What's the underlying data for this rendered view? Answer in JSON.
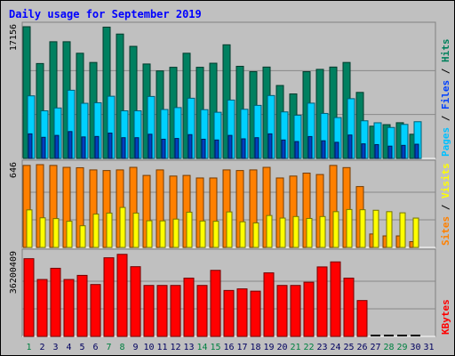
{
  "chart_data": {
    "title": "Daily usage for September 2019",
    "type": "bar",
    "categories": [
      "1",
      "2",
      "3",
      "4",
      "5",
      "6",
      "7",
      "8",
      "9",
      "10",
      "11",
      "12",
      "13",
      "14",
      "15",
      "16",
      "17",
      "18",
      "19",
      "20",
      "21",
      "22",
      "23",
      "24",
      "25",
      "26",
      "27",
      "28",
      "29",
      "30",
      "31"
    ],
    "weekend_days": [
      "1",
      "7",
      "8",
      "14",
      "15",
      "21",
      "22",
      "28",
      "29"
    ],
    "panels": [
      {
        "id": "hits",
        "axis_max_label": "17156",
        "ymax": 17156,
        "legend": [
          {
            "name": "Hits",
            "color": "#00805c"
          },
          {
            "name": "Files",
            "color": "#0040ff"
          },
          {
            "name": "Pages",
            "color": "#00c0ff"
          }
        ],
        "series": [
          {
            "name": "Hits",
            "color": "#008060",
            "values": [
              17156,
              12360,
              15200,
              15200,
              13700,
              12500,
              17100,
              16200,
              14600,
              12300,
              11400,
              11870,
              13700,
              11870,
              12400,
              14800,
              12000,
              11300,
              11900,
              9500,
              8400,
              11300,
              11600,
              11900,
              12500,
              8600,
              4200,
              4400,
              4650,
              3150,
              null
            ]
          },
          {
            "name": "Pages",
            "color": "#00d0ff",
            "values": [
              8150,
              6200,
              6570,
              8880,
              7180,
              7250,
              8100,
              6200,
              6200,
              8070,
              6370,
              6620,
              7840,
              6350,
              6010,
              7600,
              6400,
              6910,
              8190,
              6060,
              5620,
              7200,
              5860,
              5320,
              7780,
              4900,
              4640,
              4030,
              4430,
              4780,
              null
            ]
          },
          {
            "name": "Files",
            "color": "#0040c0",
            "values": [
              3200,
              2750,
              3000,
              3500,
              2800,
              2860,
              3300,
              2700,
              2700,
              3150,
              2500,
              2600,
              3100,
              2500,
              2400,
              3000,
              2550,
              2700,
              3200,
              2400,
              2200,
              2850,
              2300,
              2100,
              3050,
              1900,
              1800,
              1600,
              1700,
              1850,
              null
            ]
          }
        ]
      },
      {
        "id": "sites",
        "axis_max_label": "646",
        "ymax": 646,
        "legend": [
          {
            "name": "Visits",
            "color": "#ffff00"
          },
          {
            "name": "Sites",
            "color": "#ff8000"
          }
        ],
        "series": [
          {
            "name": "Visits",
            "color": "#ffff00",
            "values": [
              293,
              231,
              225,
              204,
              169,
              260,
              268,
              312,
              268,
              208,
              207,
              221,
              275,
              206,
              204,
              277,
              200,
              191,
              249,
              229,
              241,
              226,
              241,
              279,
              296,
              294,
              290,
              279,
              270,
              229,
              null
            ]
          },
          {
            "name": "Sites",
            "color": "#ff8000",
            "values": [
              640,
              646,
              640,
              625,
              622,
              605,
              600,
              605,
              625,
              562,
              605,
              557,
              562,
              542,
              542,
              605,
              600,
              605,
              625,
              542,
              557,
              580,
              569,
              640,
              623,
              475,
              105,
              90,
              90,
              45,
              null
            ]
          }
        ]
      },
      {
        "id": "kbytes",
        "axis_max_label": "36200409",
        "ymax": 36200409,
        "legend": [
          {
            "name": "KBytes",
            "color": "#ff0000"
          }
        ],
        "series": [
          {
            "name": "KBytes",
            "color": "#ff0000",
            "values": [
              34000000,
              24900000,
              29800000,
              24900000,
              26700000,
              22700000,
              34400000,
              35900000,
              30500000,
              22300000,
              22300000,
              22300000,
              25500000,
              22300000,
              28900000,
              20100000,
              20800000,
              19800000,
              27800000,
              22300000,
              22300000,
              23700000,
              30400000,
              32600000,
              25500000,
              15700000,
              null,
              null,
              null,
              null,
              null
            ]
          }
        ]
      }
    ]
  },
  "colors": {
    "background": "#c0c0c0",
    "title": "#0000ff",
    "weekday_label": "#00005f",
    "weekend_label": "#008040"
  }
}
